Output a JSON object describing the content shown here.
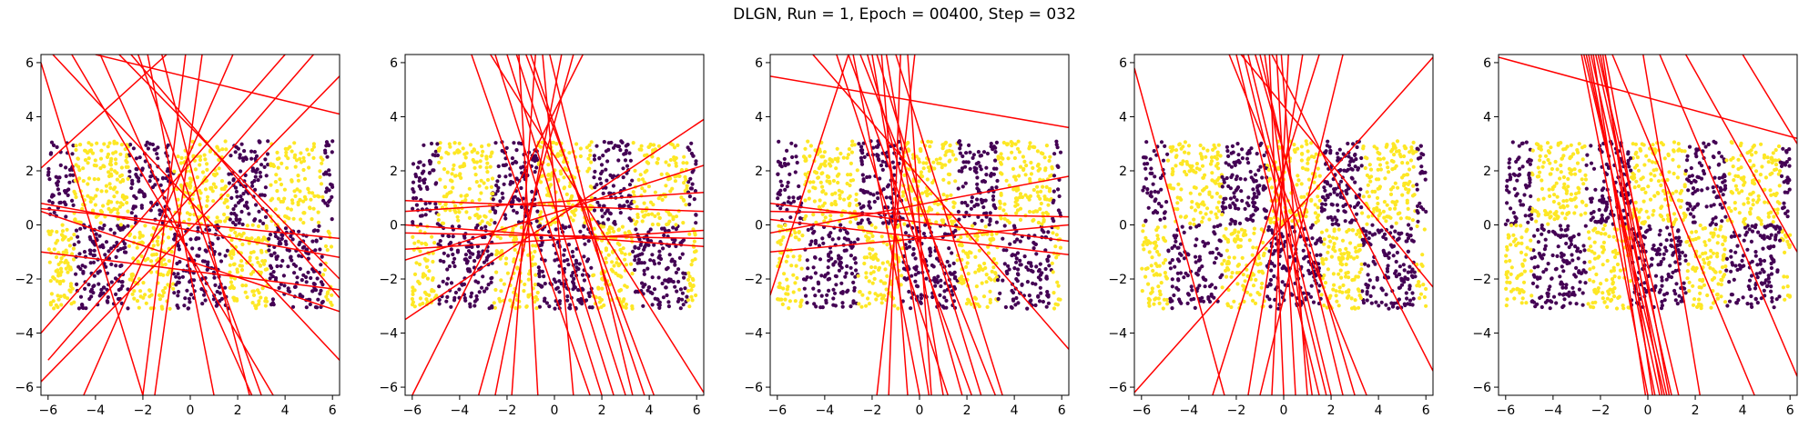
{
  "figure": {
    "title": "DLGN, Run = 1, Epoch = 00400, Step = 032"
  },
  "colors": {
    "class_a": "#440154",
    "class_b": "#fde725",
    "hyperplane": "#ff0000",
    "axes": "#000000"
  },
  "chart_data": [
    {
      "type": "scatter",
      "xlim": [
        -6.3,
        6.3
      ],
      "ylim": [
        -6.3,
        6.3
      ],
      "xticks": [
        -6,
        -4,
        -2,
        0,
        2,
        4,
        6
      ],
      "yticks": [
        -6,
        -4,
        -2,
        0,
        2,
        4,
        6
      ],
      "points": {
        "xrange": [
          -6,
          6
        ],
        "yrange": [
          -3.1,
          3.1
        ],
        "bands": [
          -4.9,
          -2.6,
          -0.7,
          1.6,
          3.3,
          5.6
        ],
        "note_pattern": "checkerboard"
      },
      "lines": [
        [
          -6.3,
          6.0,
          -2.0,
          -6.3
        ],
        [
          -5.8,
          6.3,
          6.3,
          -5.0
        ],
        [
          -6.3,
          -5.8,
          6.3,
          5.5
        ],
        [
          -6.3,
          0.6,
          6.3,
          -0.5
        ],
        [
          -6.3,
          0.8,
          6.3,
          -1.2
        ],
        [
          -6.3,
          0.5,
          6.3,
          -3.2
        ],
        [
          -6.3,
          -4.0,
          4.0,
          6.3
        ],
        [
          -5.0,
          6.3,
          3.5,
          -6.3
        ],
        [
          -3.8,
          6.3,
          2.6,
          -6.3
        ],
        [
          -6.3,
          2.1,
          -1.0,
          6.3
        ],
        [
          -2.5,
          6.3,
          6.3,
          -2.7
        ],
        [
          -4.0,
          6.3,
          6.3,
          4.1
        ],
        [
          -1.8,
          6.3,
          1.0,
          -6.3
        ],
        [
          -0.2,
          6.3,
          -2.0,
          -6.3
        ],
        [
          0.5,
          6.3,
          -1.5,
          -6.3
        ],
        [
          1.8,
          6.3,
          -4.5,
          -6.3
        ],
        [
          -2.2,
          6.3,
          3.0,
          -6.3
        ],
        [
          -3.0,
          6.3,
          6.3,
          -2.0
        ],
        [
          5.2,
          6.3,
          -6.0,
          -5.0
        ],
        [
          -1.2,
          6.3,
          2.5,
          -6.3
        ],
        [
          -6.3,
          -1.0,
          6.3,
          -2.4
        ]
      ]
    },
    {
      "type": "scatter",
      "xlim": [
        -6.3,
        6.3
      ],
      "ylim": [
        -6.3,
        6.3
      ],
      "xticks": [
        -6,
        -4,
        -2,
        0,
        2,
        4,
        6
      ],
      "yticks": [
        -6,
        -4,
        -2,
        0,
        2,
        4,
        6
      ],
      "points": {
        "xrange": [
          -6,
          6
        ],
        "yrange": [
          -3.1,
          3.1
        ],
        "bands": [
          -4.9,
          -2.6,
          -0.7,
          1.6,
          3.3,
          5.6
        ],
        "note_pattern": "checkerboard"
      },
      "lines": [
        [
          -3.5,
          6.3,
          1.5,
          -6.3
        ],
        [
          -2.5,
          6.3,
          2.0,
          -6.3
        ],
        [
          -1.6,
          6.3,
          3.0,
          -6.3
        ],
        [
          -1.0,
          6.3,
          3.8,
          -6.3
        ],
        [
          -0.2,
          6.3,
          3.3,
          -6.3
        ],
        [
          -1.5,
          6.3,
          -0.7,
          -6.3
        ],
        [
          -0.8,
          6.3,
          -1.8,
          -6.3
        ],
        [
          0.3,
          6.3,
          -2.5,
          -6.3
        ],
        [
          1.2,
          6.3,
          -6.0,
          -6.3
        ],
        [
          -6.3,
          0.9,
          6.3,
          0.5
        ],
        [
          -6.3,
          0.5,
          6.3,
          1.2
        ],
        [
          -6.3,
          -0.9,
          6.3,
          -0.2
        ],
        [
          -6.3,
          0.0,
          6.3,
          -0.8
        ],
        [
          -6.3,
          -0.3,
          6.3,
          -0.5
        ],
        [
          -6.3,
          -3.5,
          6.3,
          3.9
        ],
        [
          -6.3,
          -1.3,
          6.3,
          2.2
        ],
        [
          -2.7,
          6.3,
          6.3,
          -6.2
        ],
        [
          -1.2,
          6.3,
          4.2,
          -6.3
        ],
        [
          0.8,
          6.3,
          -3.2,
          -6.3
        ],
        [
          -0.5,
          6.3,
          0.8,
          -6.3
        ],
        [
          -2.0,
          6.3,
          2.5,
          -6.3
        ]
      ]
    },
    {
      "type": "scatter",
      "xlim": [
        -6.3,
        6.3
      ],
      "ylim": [
        -6.3,
        6.3
      ],
      "xticks": [
        -6,
        -4,
        -2,
        0,
        2,
        4,
        6
      ],
      "yticks": [
        -6,
        -4,
        -2,
        0,
        2,
        4,
        6
      ],
      "points": {
        "xrange": [
          -6,
          6
        ],
        "yrange": [
          -3.1,
          3.1
        ],
        "bands": [
          -4.9,
          -2.6,
          -0.7,
          1.6,
          3.3,
          5.6
        ],
        "note_pattern": "checkerboard"
      },
      "lines": [
        [
          -6.3,
          5.5,
          6.3,
          3.6
        ],
        [
          -6.3,
          0.8,
          6.3,
          -0.6
        ],
        [
          -6.3,
          0.5,
          6.3,
          0.3
        ],
        [
          -6.3,
          -0.3,
          6.3,
          1.8
        ],
        [
          -6.3,
          -1.0,
          6.3,
          0.0
        ],
        [
          -6.3,
          0.2,
          6.3,
          -1.1
        ],
        [
          -3.5,
          6.3,
          1.2,
          -6.3
        ],
        [
          -2.8,
          6.3,
          0.0,
          -6.3
        ],
        [
          -2.2,
          6.3,
          1.8,
          -6.3
        ],
        [
          -1.8,
          6.3,
          2.6,
          -6.3
        ],
        [
          -1.4,
          6.3,
          1.0,
          -6.3
        ],
        [
          -0.8,
          6.3,
          -1.3,
          -6.3
        ],
        [
          -0.2,
          6.3,
          -1.8,
          -6.3
        ],
        [
          -1.0,
          6.3,
          3.5,
          -6.3
        ],
        [
          -2.5,
          6.3,
          3.2,
          -6.3
        ],
        [
          -4.5,
          6.3,
          6.3,
          -4.6
        ],
        [
          -6.3,
          -2.6,
          -3.0,
          6.3
        ],
        [
          -0.5,
          6.3,
          0.5,
          -6.3
        ],
        [
          -1.6,
          6.3,
          -0.5,
          -6.3
        ],
        [
          -3.0,
          6.3,
          2.2,
          -6.3
        ],
        [
          -2.0,
          6.3,
          0.4,
          -6.3
        ]
      ]
    },
    {
      "type": "scatter",
      "xlim": [
        -6.3,
        6.3
      ],
      "ylim": [
        -6.3,
        6.3
      ],
      "xticks": [
        -6,
        -4,
        -2,
        0,
        2,
        4,
        6
      ],
      "yticks": [
        -6,
        -4,
        -2,
        0,
        2,
        4,
        6
      ],
      "points": {
        "xrange": [
          -6,
          6
        ],
        "yrange": [
          -3.1,
          3.1
        ],
        "bands": [
          -4.9,
          -2.6,
          -0.7,
          1.6,
          3.3,
          5.6
        ],
        "note_pattern": "checkerboard"
      },
      "lines": [
        [
          -6.3,
          5.8,
          -2.5,
          -6.3
        ],
        [
          -6.3,
          -6.2,
          6.3,
          6.2
        ],
        [
          -2.0,
          6.3,
          1.5,
          -6.3
        ],
        [
          -1.5,
          6.3,
          2.0,
          -6.3
        ],
        [
          -1.0,
          6.3,
          2.5,
          -6.3
        ],
        [
          -0.8,
          6.3,
          1.2,
          -6.3
        ],
        [
          -0.3,
          6.3,
          0.5,
          -6.3
        ],
        [
          0.2,
          6.3,
          -0.5,
          -6.3
        ],
        [
          0.8,
          6.3,
          -1.5,
          -6.3
        ],
        [
          1.5,
          6.3,
          -3.0,
          -6.3
        ],
        [
          -1.2,
          6.3,
          3.0,
          -6.3
        ],
        [
          -2.3,
          6.3,
          3.5,
          -6.3
        ],
        [
          -0.6,
          6.3,
          0.0,
          -6.3
        ],
        [
          -1.8,
          6.3,
          6.3,
          -2.3
        ],
        [
          -0.5,
          6.3,
          6.3,
          -5.4
        ],
        [
          -1.7,
          6.3,
          1.8,
          -6.3
        ],
        [
          2.5,
          6.3,
          -1.0,
          -6.3
        ],
        [
          -0.1,
          6.3,
          1.0,
          -6.3
        ]
      ]
    },
    {
      "type": "scatter",
      "xlim": [
        -6.3,
        6.3
      ],
      "ylim": [
        -6.3,
        6.3
      ],
      "xticks": [
        -6,
        -4,
        -2,
        0,
        2,
        4,
        6
      ],
      "yticks": [
        -6,
        -4,
        -2,
        0,
        2,
        4,
        6
      ],
      "points": {
        "xrange": [
          -6,
          6
        ],
        "yrange": [
          -3.1,
          3.1
        ],
        "bands": [
          -4.9,
          -2.6,
          -0.7,
          1.6,
          3.3,
          5.6
        ],
        "note_pattern": "checkerboard"
      },
      "lines": [
        [
          -6.3,
          6.2,
          6.3,
          3.2
        ],
        [
          -2.8,
          6.3,
          0.0,
          -6.3
        ],
        [
          -2.6,
          6.3,
          0.5,
          -6.3
        ],
        [
          -2.4,
          6.3,
          0.8,
          -6.3
        ],
        [
          -2.2,
          6.3,
          1.0,
          -6.3
        ],
        [
          -2.0,
          6.3,
          0.6,
          -6.3
        ],
        [
          -1.9,
          6.3,
          0.2,
          -6.3
        ],
        [
          -2.3,
          6.3,
          -0.1,
          -6.3
        ],
        [
          -2.5,
          6.3,
          0.3,
          -6.3
        ],
        [
          -1.8,
          6.3,
          0.9,
          -6.3
        ],
        [
          -2.1,
          6.3,
          1.3,
          -6.3
        ],
        [
          -2.7,
          6.3,
          0.7,
          -6.3
        ],
        [
          -0.2,
          6.3,
          2.2,
          -6.3
        ],
        [
          0.5,
          6.3,
          6.3,
          -5.6
        ],
        [
          1.6,
          6.3,
          6.3,
          -1.0
        ],
        [
          4.0,
          6.3,
          6.3,
          3.0
        ],
        [
          -1.5,
          6.3,
          4.5,
          -6.3
        ]
      ]
    }
  ]
}
